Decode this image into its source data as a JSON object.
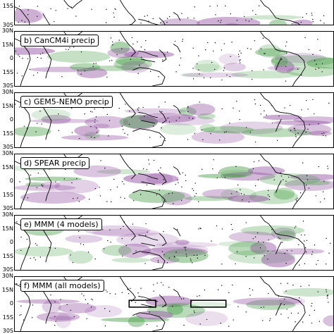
{
  "panels": [
    {
      "id": "a",
      "title": "",
      "lat_labels": [
        "15S",
        "30S"
      ]
    },
    {
      "id": "b",
      "title": "b) CanCM4i precip",
      "lat_labels": [
        "30N",
        "15N",
        "0",
        "15S",
        "30S"
      ]
    },
    {
      "id": "c",
      "title": "c) GEM5-NEMO precip",
      "lat_labels": [
        "30N",
        "15N",
        "0",
        "15S",
        "30S"
      ]
    },
    {
      "id": "d",
      "title": "d) SPEAR precip",
      "lat_labels": [
        "30N",
        "15N",
        "0",
        "15S",
        "30S"
      ]
    },
    {
      "id": "e",
      "title": "e) MMM (4 models)",
      "lat_labels": [
        "30N",
        "15N",
        "0",
        "15S",
        "30S"
      ]
    },
    {
      "id": "f",
      "title": "f) MMM (all models)",
      "lat_labels": [
        "30N",
        "15N",
        "0",
        "15S",
        "30S"
      ]
    }
  ],
  "colors": {
    "positive_anomaly": "#8e4c9e",
    "negative_anomaly": "#4aa04a",
    "coastline": "#000000",
    "stipple": "#000000"
  },
  "map": {
    "lat_range": [
      -30,
      30
    ],
    "lon_range": [
      -20,
      340
    ],
    "projection": "equirectangular"
  }
}
